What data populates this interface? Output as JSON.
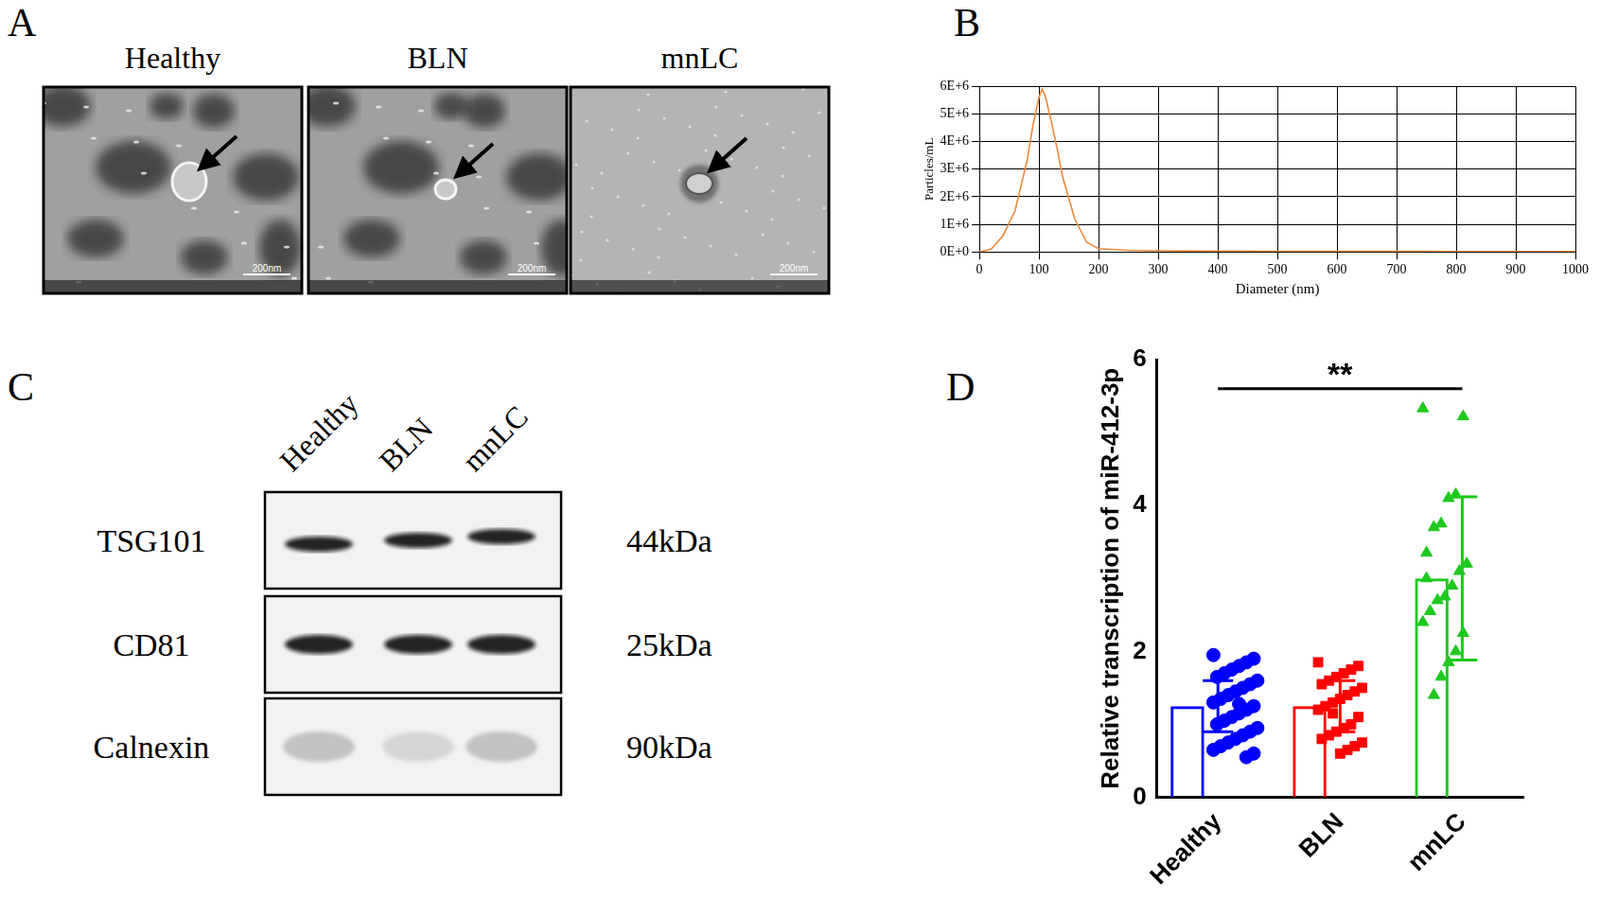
{
  "panels": {
    "A": {
      "label": "A",
      "images": [
        {
          "title": "Healthy",
          "scale_bar": "200nm"
        },
        {
          "title": "BLN",
          "scale_bar": "200nm"
        },
        {
          "title": "mnLC",
          "scale_bar": "200nm"
        }
      ]
    },
    "C": {
      "label": "C",
      "lanes": [
        "Healthy",
        "BLN",
        "mnLC"
      ],
      "rows": [
        {
          "protein": "TSG101",
          "size": "44kDa"
        },
        {
          "protein": "CD81",
          "size": "25kDa"
        },
        {
          "protein": "Calnexin",
          "size": "90kDa"
        }
      ]
    }
  },
  "chart_data": [
    {
      "panel": "B",
      "type": "line",
      "x_label": "Diameter (nm)",
      "y_label": "Particles/mL",
      "x": [
        0,
        20,
        40,
        60,
        80,
        90,
        100,
        105,
        110,
        120,
        130,
        140,
        160,
        180,
        200,
        250,
        300,
        400,
        500,
        600,
        700,
        800,
        900,
        1000
      ],
      "values": [
        0,
        100000,
        600000,
        1500000,
        3300000,
        4600000,
        5600000,
        5900000,
        5700000,
        4800000,
        3800000,
        2700000,
        1200000,
        350000,
        120000,
        60000,
        40000,
        30000,
        25000,
        20000,
        20000,
        15000,
        15000,
        10000
      ],
      "color": "#f0883a",
      "xlim": [
        0,
        1000
      ],
      "xticks": [
        0,
        100,
        200,
        300,
        400,
        500,
        600,
        700,
        800,
        900,
        1000
      ],
      "ylim": [
        0,
        6000000
      ],
      "yticks": [
        {
          "value": 0,
          "label": "0E+0"
        },
        {
          "value": 1000000,
          "label": "1E+6"
        },
        {
          "value": 2000000,
          "label": "2E+6"
        },
        {
          "value": 3000000,
          "label": "3E+6"
        },
        {
          "value": 4000000,
          "label": "4E+6"
        },
        {
          "value": 5000000,
          "label": "5E+6"
        },
        {
          "value": 6000000,
          "label": "6E+6"
        }
      ],
      "grid": true
    },
    {
      "panel": "D",
      "type": "bar",
      "y_label": "Relative transcription of miR-412-3p",
      "categories": [
        "Healthy",
        "BLN",
        "mnLC"
      ],
      "values": [
        1.25,
        1.25,
        3.0
      ],
      "errors": [
        0.35,
        0.35,
        1.12
      ],
      "colors": [
        "#0000ff",
        "#ff0000",
        "#1ec81e"
      ],
      "points": [
        {
          "marker": "circle",
          "color": "#0000ff",
          "values": [
            1.95,
            1.9,
            1.85,
            1.8,
            1.75,
            1.7,
            1.65,
            1.6,
            1.55,
            1.5,
            1.45,
            1.4,
            1.35,
            1.3,
            1.25,
            1.2,
            1.15,
            1.1,
            1.05,
            1.0,
            0.95,
            0.9,
            0.85,
            0.8,
            0.75,
            0.7,
            0.65,
            0.6,
            0.55,
            1.28
          ]
        },
        {
          "marker": "square",
          "color": "#ff0000",
          "values": [
            1.85,
            1.8,
            1.75,
            1.7,
            1.65,
            1.6,
            1.55,
            1.5,
            1.45,
            1.4,
            1.35,
            1.3,
            1.25,
            1.2,
            1.1,
            1.0,
            0.95,
            0.9,
            0.85,
            0.8,
            0.75,
            0.7,
            0.65,
            0.6,
            1.15
          ]
        },
        {
          "marker": "triangle",
          "color": "#1ec81e",
          "values": [
            5.33,
            5.22,
            4.15,
            4.1,
            3.75,
            3.7,
            3.35,
            3.2,
            3.1,
            2.9,
            2.75,
            2.7,
            2.55,
            2.4,
            2.25,
            2.0,
            1.85,
            1.65,
            1.4,
            3.0
          ]
        }
      ],
      "annotations": [
        {
          "text": "**",
          "from": "Healthy",
          "to": "mnLC",
          "y": 5.6
        }
      ],
      "ylim": [
        0,
        6
      ],
      "yticks": [
        0,
        2,
        4,
        6
      ],
      "grid": false
    }
  ]
}
